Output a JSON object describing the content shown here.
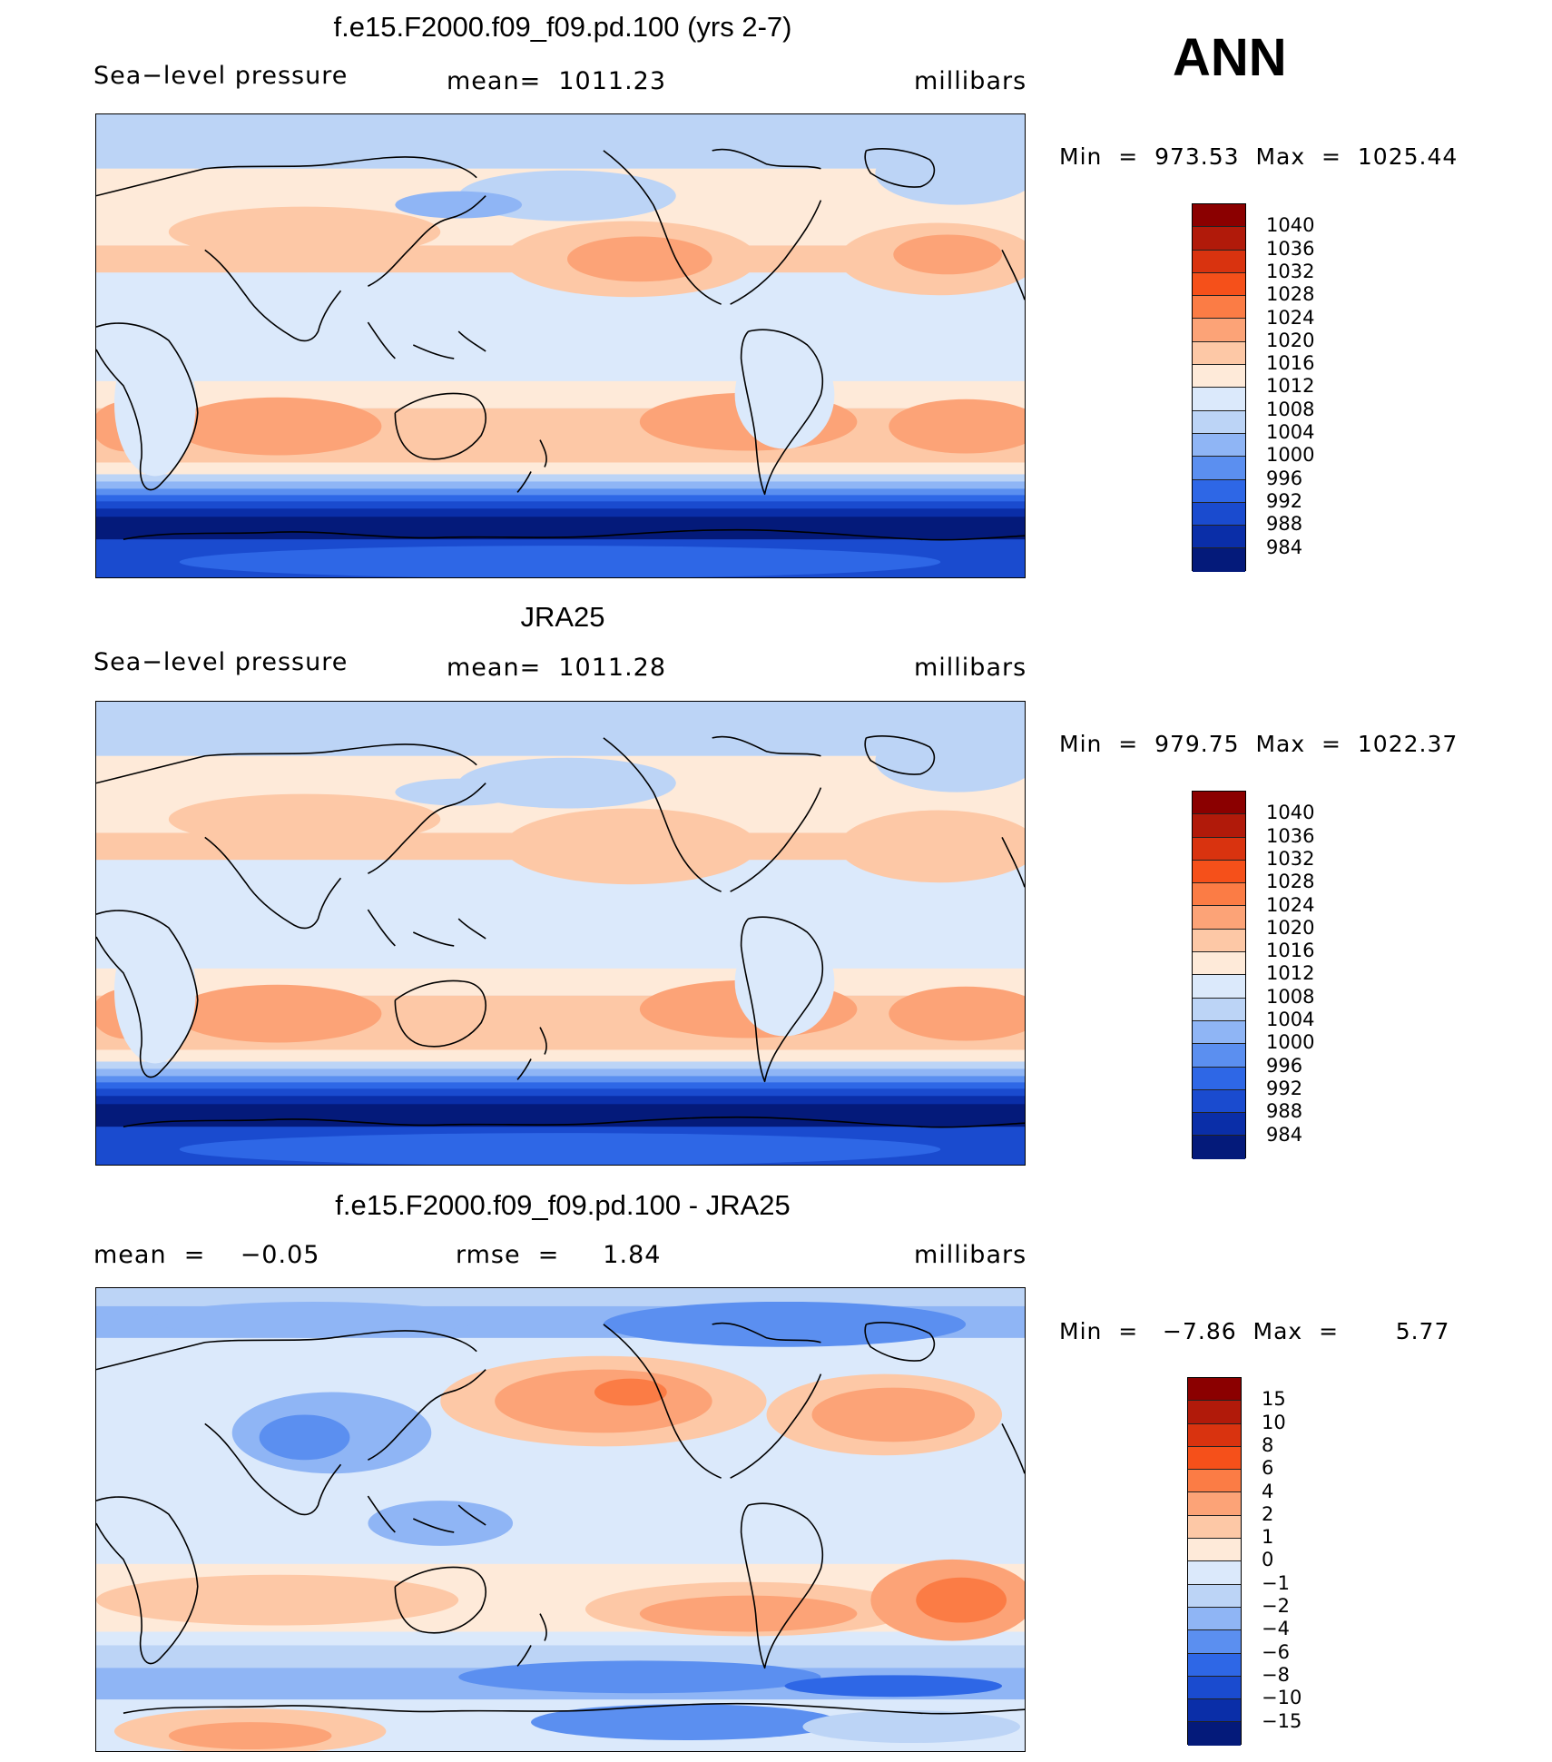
{
  "season": "ANN",
  "panels": [
    {
      "title": "f.e15.F2000.f09_f09.pd.100 (yrs 2-7)",
      "left_label": "Sea−level pressure",
      "center_label": "mean=  1011.23",
      "right_label": "millibars",
      "minmax": "Min  =  973.53  Max  =  1025.44",
      "map_type": "slp"
    },
    {
      "title": "JRA25",
      "left_label": "Sea−level pressure",
      "center_label": "mean=  1011.28",
      "right_label": "millibars",
      "minmax": "Min  =  979.75  Max  =  1022.37",
      "map_type": "slp"
    },
    {
      "title": "f.e15.F2000.f09_f09.pd.100 - JRA25",
      "left_label": "mean  =    −0.05",
      "center_label": "rmse  =     1.84",
      "right_label": "millibars",
      "minmax": "Min  =   −7.86  Max  =       5.77",
      "map_type": "diff"
    }
  ],
  "colorbars": {
    "slp": {
      "labels": [
        "1040",
        "1036",
        "1032",
        "1028",
        "1024",
        "1020",
        "1016",
        "1012",
        "1008",
        "1004",
        "1000",
        "996",
        "992",
        "988",
        "984"
      ],
      "colors": [
        "#8b0000",
        "#b11a0a",
        "#d9330f",
        "#f5501a",
        "#fb7c45",
        "#fca377",
        "#fdc8a6",
        "#feead9",
        "#dbe9fb",
        "#bcd4f6",
        "#8fb5f5",
        "#5b8ff0",
        "#2e67e6",
        "#1a4bcf",
        "#0a2ea8",
        "#041a7a"
      ]
    },
    "diff": {
      "labels": [
        "15",
        "10",
        "8",
        "6",
        "4",
        "2",
        "1",
        "0",
        "−1",
        "−2",
        "−4",
        "−6",
        "−8",
        "−10",
        "−15"
      ],
      "colors": [
        "#8b0000",
        "#b11a0a",
        "#d9330f",
        "#f5501a",
        "#fb7c45",
        "#fca377",
        "#fdc8a6",
        "#feead9",
        "#dbe9fb",
        "#bcd4f6",
        "#8fb5f5",
        "#5b8ff0",
        "#2e67e6",
        "#1a4bcf",
        "#0a2ea8",
        "#041a7a"
      ]
    }
  }
}
